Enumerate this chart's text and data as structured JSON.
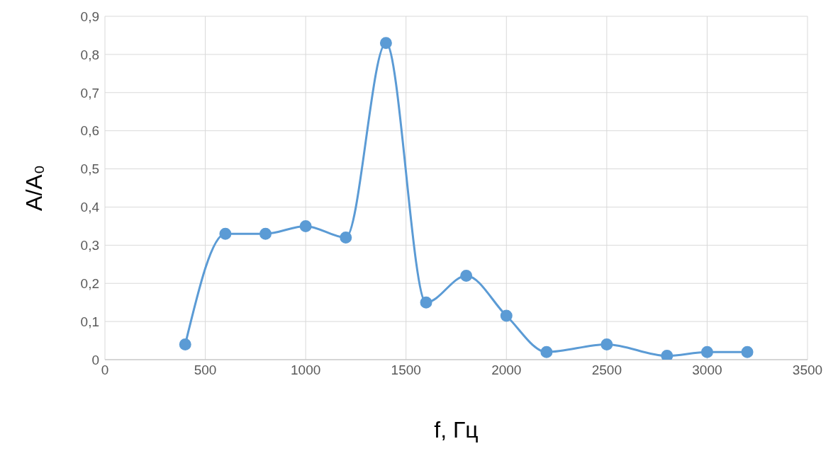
{
  "chart_data": {
    "type": "line",
    "xlabel": "f, Гц",
    "ylabel": "A/A₀",
    "x": [
      400,
      600,
      800,
      1000,
      1200,
      1400,
      1600,
      1800,
      2000,
      2200,
      2500,
      2800,
      3000,
      3200
    ],
    "series": [
      {
        "color": "#5b9bd5",
        "values": [
          0.04,
          0.33,
          0.33,
          0.35,
          0.32,
          0.83,
          0.15,
          0.22,
          0.115,
          0.02,
          0.04,
          0.01,
          0.02,
          0.02
        ]
      }
    ],
    "xlim": [
      0,
      3500
    ],
    "xticks": [
      0,
      500,
      1000,
      1500,
      2000,
      2500,
      3000,
      3500
    ],
    "ylim": [
      0,
      0.9
    ],
    "yticks": [
      0,
      {
        "value": 0.1,
        "label": "0,1"
      },
      {
        "value": 0.2,
        "label": "0,2"
      },
      {
        "value": 0.3,
        "label": "0,3"
      },
      {
        "value": 0.4,
        "label": "0,4"
      },
      {
        "value": 0.5,
        "label": "0,5"
      },
      {
        "value": 0.6,
        "label": "0,6"
      },
      {
        "value": 0.7,
        "label": "0,7"
      },
      {
        "value": 0.8,
        "label": "0,8"
      },
      {
        "value": 0.9,
        "label": "0,9"
      }
    ],
    "grid": true,
    "marker": "circle",
    "line_style": "solid",
    "legend": false
  }
}
